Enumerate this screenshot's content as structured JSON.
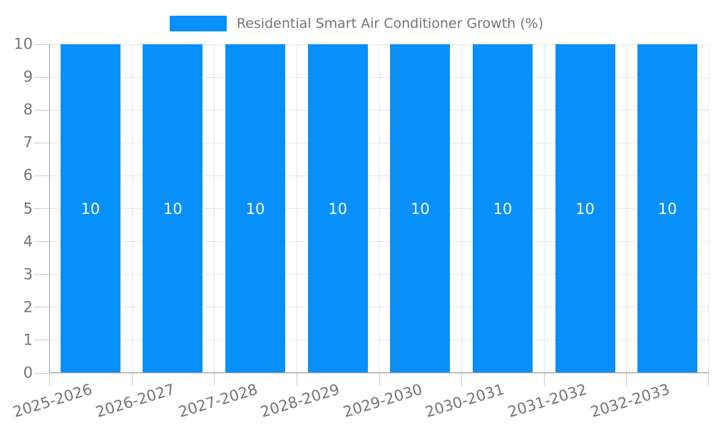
{
  "legend": {
    "label": "Residential Smart Air Conditioner Growth (%)"
  },
  "chart_data": {
    "type": "bar",
    "title": "Residential Smart Air Conditioner Growth (%)",
    "categories": [
      "2025-2026",
      "2026-2027",
      "2027-2028",
      "2028-2029",
      "2029-2030",
      "2030-2031",
      "2031-2032",
      "2032-2033"
    ],
    "series": [
      {
        "name": "Residential Smart Air Conditioner Growth (%)",
        "values": [
          10,
          10,
          10,
          10,
          10,
          10,
          10,
          10
        ]
      }
    ],
    "value_labels": [
      "10",
      "10",
      "10",
      "10",
      "10",
      "10",
      "10",
      "10"
    ],
    "xlabel": "",
    "ylabel": "",
    "ylim": [
      0,
      10
    ],
    "yticks": [
      0,
      1,
      2,
      3,
      4,
      5,
      6,
      7,
      8,
      9,
      10
    ],
    "grid": true,
    "legend_position": "top",
    "x_tick_rotation_deg": -17
  },
  "colors": {
    "bar": "#0890fa",
    "grid": "#e6e6e6",
    "axis": "#9e9e9e",
    "tick": "#cccccc",
    "text": "#757575",
    "value_text": "#ffffff",
    "background": "#ffffff"
  }
}
